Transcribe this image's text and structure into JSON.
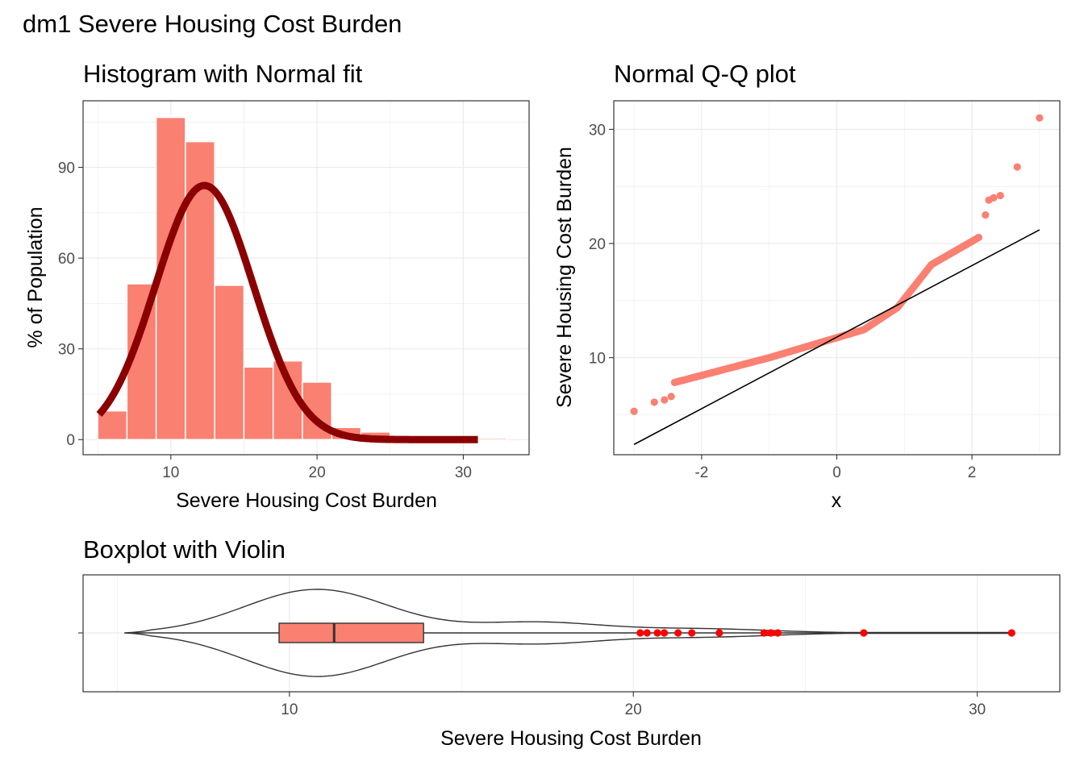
{
  "figure": {
    "title": "dm1 Severe Housing Cost Burden"
  },
  "chart_data": [
    {
      "type": "bar",
      "subtype": "histogram",
      "title": "Histogram with Normal fit",
      "xlabel": "Severe Housing Cost Burden",
      "ylabel": "% of Population",
      "xlim": [
        4,
        34.5
      ],
      "ylim": [
        -5,
        112
      ],
      "xticks": [
        10,
        20,
        30
      ],
      "yticks": [
        0,
        30,
        60,
        90
      ],
      "bins": [
        {
          "x0": 5.0,
          "x1": 7.0,
          "value": 9.5
        },
        {
          "x0": 7.0,
          "x1": 9.0,
          "value": 51.5
        },
        {
          "x0": 9.0,
          "x1": 11.0,
          "value": 106.5
        },
        {
          "x0": 11.0,
          "x1": 13.0,
          "value": 98.5
        },
        {
          "x0": 13.0,
          "x1": 15.0,
          "value": 51
        },
        {
          "x0": 15.0,
          "x1": 17.0,
          "value": 24
        },
        {
          "x0": 17.0,
          "x1": 19.0,
          "value": 26
        },
        {
          "x0": 19.0,
          "x1": 21.0,
          "value": 19
        },
        {
          "x0": 21.0,
          "x1": 23.0,
          "value": 4
        },
        {
          "x0": 23.0,
          "x1": 25.0,
          "value": 2.5
        },
        {
          "x0": 25.0,
          "x1": 27.0,
          "value": 0.5
        },
        {
          "x0": 27.0,
          "x1": 29.0,
          "value": 0.3
        },
        {
          "x0": 29.0,
          "x1": 31.0,
          "value": 0.3
        },
        {
          "x0": 31.0,
          "x1": 33.0,
          "value": 0.5
        }
      ],
      "normal_fit": {
        "mean": 12.3,
        "sd": 3.35,
        "peak": 84,
        "xrange": [
          5.1,
          31
        ]
      },
      "bar_color": "#FA8072",
      "curve_color": "#8B0000",
      "grid": true
    },
    {
      "type": "scatter",
      "subtype": "qq",
      "title": "Normal Q-Q plot",
      "xlabel": "x",
      "ylabel": "Severe Housing Cost Burden",
      "xlim": [
        -3.3,
        3.3
      ],
      "ylim": [
        1.5,
        32.5
      ],
      "xticks": [
        -2,
        0,
        2
      ],
      "yticks": [
        10,
        20,
        30
      ],
      "reference_line": {
        "x": [
          -3,
          3
        ],
        "y": [
          2.4,
          21.2
        ]
      },
      "tail_points": [
        {
          "x": -3.0,
          "y": 5.3
        },
        {
          "x": -2.7,
          "y": 6.1
        },
        {
          "x": -2.55,
          "y": 6.3
        },
        {
          "x": -2.45,
          "y": 6.6
        },
        {
          "x": 2.2,
          "y": 22.5
        },
        {
          "x": 2.25,
          "y": 23.8
        },
        {
          "x": 2.32,
          "y": 24.0
        },
        {
          "x": 2.42,
          "y": 24.2
        },
        {
          "x": 2.67,
          "y": 26.7
        },
        {
          "x": 3.0,
          "y": 31.0
        }
      ],
      "point_color": "#FA8072",
      "line_color": "#000000",
      "grid": true
    },
    {
      "type": "boxplot",
      "subtype": "box-violin",
      "title": "Boxplot with Violin",
      "xlabel": "Severe Housing Cost Burden",
      "xlim": [
        4,
        32.4
      ],
      "xticks": [
        10,
        20,
        30
      ],
      "box": {
        "min": 5.3,
        "q1": 9.7,
        "median": 11.3,
        "q3": 13.9,
        "whiker_high": 20.1,
        "max": 31.0
      },
      "violin": {
        "min": 5.2,
        "max": 31.0
      },
      "outliers": [
        20.2,
        20.4,
        20.7,
        20.9,
        21.3,
        21.7,
        22.5,
        23.8,
        24.0,
        24.2,
        26.7,
        31.0
      ],
      "box_color": "#FA8072",
      "outlier_color": "#FF0000",
      "grid": true
    }
  ]
}
